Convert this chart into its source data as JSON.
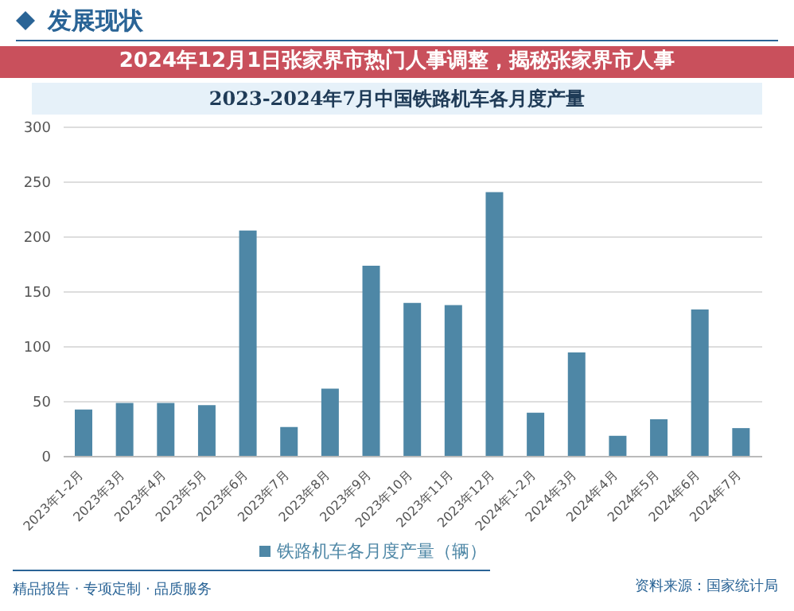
{
  "chart_data": {
    "type": "bar",
    "title": "2023-2024年7月中国铁路机车各月度产量",
    "annotations": [
      "发展现状",
      "2024年12月1日张家界市热门人事调整，揭秘张家界市人事",
      "精品报告 · 专项定制 · 品质服务",
      "资料来源：国家统计局"
    ],
    "categories": [
      "2023年1-2月",
      "2023年3月",
      "2023年4月",
      "2023年5月",
      "2023年6月",
      "2023年7月",
      "2023年8月",
      "2023年9月",
      "2023年10月",
      "2023年11月",
      "2023年12月",
      "2024年1-2月",
      "2024年3月",
      "2024年4月",
      "2024年5月",
      "2024年6月",
      "2024年7月"
    ],
    "series": [
      {
        "name": "铁路机车各月度产量（辆）",
        "color": "#4e87a6",
        "values": [
          43,
          49,
          49,
          47,
          206,
          27,
          62,
          174,
          140,
          138,
          241,
          40,
          95,
          19,
          34,
          134,
          26
        ]
      }
    ],
    "ylim": [
      0,
      300
    ],
    "yticks": [
      0,
      50,
      100,
      150,
      200,
      250,
      300
    ],
    "grid": "y",
    "legend": "bottom"
  }
}
